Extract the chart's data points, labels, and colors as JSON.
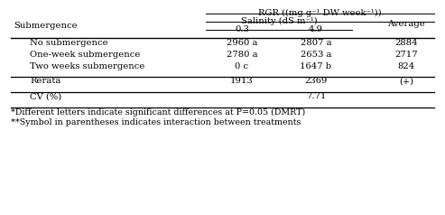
{
  "title_row1": "RGR ((mg g⁻¹ DW week⁻¹))",
  "title_row2": "Salinity (dS m⁻¹)",
  "col_headers": [
    "0.3",
    "4.9",
    "Average"
  ],
  "row_header": "Submergence",
  "rows": [
    [
      "No submergence",
      "2960 a",
      "2807 a",
      "2884"
    ],
    [
      "One-week submergence",
      "2780 a",
      "2653 a",
      "2717"
    ],
    [
      "Two weeks submergence",
      "0 c",
      "1647 b",
      "824"
    ]
  ],
  "rerata_row": [
    "Rerata",
    "1913",
    "2369",
    "(+)"
  ],
  "cv_row": [
    "CV (%)",
    "",
    "7.71",
    ""
  ],
  "footnote1": "*Different letters indicate significant differences at P=0.05 (DMRT)",
  "footnote2": "**Symbol in parentheses indicates interaction between treatments",
  "bg_color": "#ffffff",
  "text_color": "#000000",
  "font_size": 7.2,
  "footnote_font_size": 6.8
}
